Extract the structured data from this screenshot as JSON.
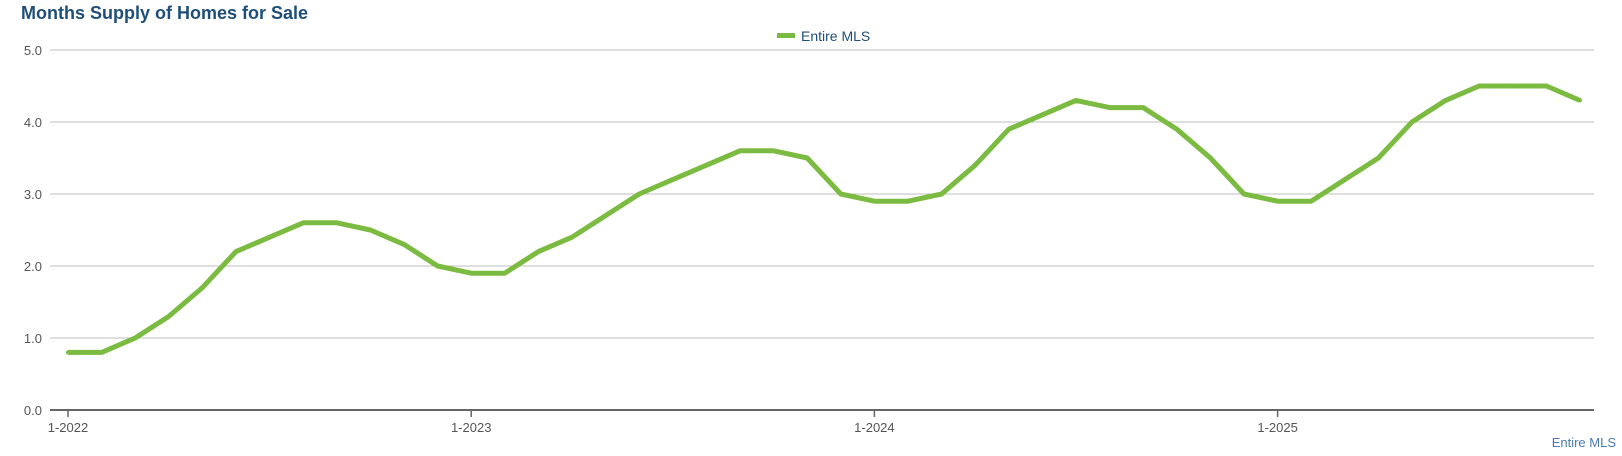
{
  "title": "Months Supply of Homes for Sale",
  "credit": "Entire MLS",
  "chart_data": {
    "type": "line",
    "title": "Months Supply of Homes for Sale",
    "xlabel": "",
    "ylabel": "",
    "ylim": [
      0,
      5
    ],
    "yticks": [
      "0.0",
      "1.0",
      "2.0",
      "3.0",
      "4.0",
      "5.0"
    ],
    "xtick_labels": [
      "1-2022",
      "1-2023",
      "1-2024",
      "1-2025"
    ],
    "grid": true,
    "legend_position": "top-center",
    "series": [
      {
        "name": "Entire MLS",
        "color": "#7cbb41",
        "x": [
          "1-2022",
          "2-2022",
          "3-2022",
          "4-2022",
          "5-2022",
          "6-2022",
          "7-2022",
          "8-2022",
          "9-2022",
          "10-2022",
          "11-2022",
          "12-2022",
          "1-2023",
          "2-2023",
          "3-2023",
          "4-2023",
          "5-2023",
          "6-2023",
          "7-2023",
          "8-2023",
          "9-2023",
          "10-2023",
          "11-2023",
          "12-2023",
          "1-2024",
          "2-2024",
          "3-2024",
          "4-2024",
          "5-2024",
          "6-2024",
          "7-2024",
          "8-2024",
          "9-2024",
          "10-2024",
          "11-2024",
          "12-2024",
          "1-2025",
          "2-2025",
          "3-2025",
          "4-2025",
          "5-2025",
          "6-2025",
          "7-2025",
          "8-2025",
          "9-2025",
          "10-2025"
        ],
        "values": [
          0.8,
          0.8,
          1.0,
          1.3,
          1.7,
          2.2,
          2.4,
          2.6,
          2.6,
          2.5,
          2.3,
          2.0,
          1.9,
          1.9,
          2.2,
          2.4,
          2.7,
          3.0,
          3.2,
          3.4,
          3.6,
          3.6,
          3.5,
          3.0,
          2.9,
          2.9,
          3.0,
          3.4,
          3.9,
          4.1,
          4.3,
          4.2,
          4.2,
          3.9,
          3.5,
          3.0,
          2.9,
          2.9,
          3.2,
          3.5,
          4.0,
          4.3,
          4.5,
          4.5,
          4.5,
          4.3
        ]
      }
    ]
  }
}
